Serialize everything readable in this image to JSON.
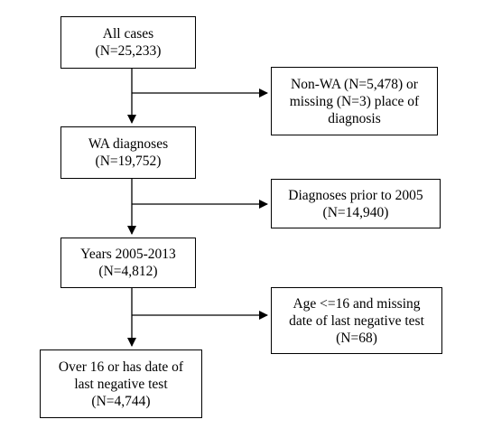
{
  "flowchart": {
    "main_boxes": [
      {
        "lines": [
          "All cases",
          "(N=25,233)"
        ]
      },
      {
        "lines": [
          "WA diagnoses",
          "(N=19,752)"
        ]
      },
      {
        "lines": [
          "Years 2005-2013",
          "(N=4,812)"
        ]
      },
      {
        "lines": [
          "Over 16 or has date of",
          "last negative test",
          "(N=4,744)"
        ]
      }
    ],
    "exclusion_boxes": [
      {
        "lines": [
          "Non-WA (N=5,478) or",
          "missing (N=3) place of",
          "diagnosis"
        ]
      },
      {
        "lines": [
          "Diagnoses prior to 2005",
          "(N=14,940)"
        ]
      },
      {
        "lines": [
          "Age <=16 and missing",
          "date of last negative test",
          "(N=68)"
        ]
      }
    ]
  }
}
